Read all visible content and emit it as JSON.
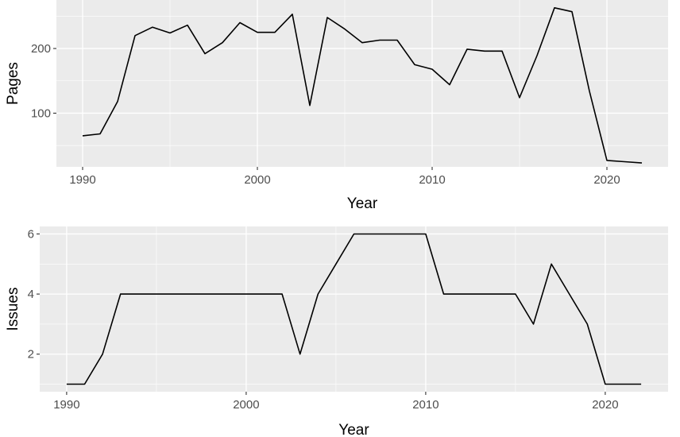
{
  "chart_data": [
    {
      "type": "line",
      "xlabel": "Year",
      "ylabel": "Pages",
      "xlim": [
        1988.5,
        2023.5
      ],
      "ylim": [
        17,
        275
      ],
      "x_ticks": [
        1990,
        2000,
        2010,
        2020
      ],
      "x_minor": [
        1995,
        2005,
        2015
      ],
      "y_ticks": [
        100,
        200
      ],
      "y_minor": [
        50,
        150,
        250
      ],
      "grid": true,
      "line_color": "#000000",
      "panel_color": "#EBEBEB",
      "series": [
        {
          "x": [
            1990,
            1991,
            1992,
            1993,
            1994,
            1995,
            1996,
            1997,
            1998,
            1999,
            2000,
            2001,
            2002,
            2003,
            2004,
            2005,
            2006,
            2007,
            2008,
            2009,
            2010,
            2011,
            2012,
            2013,
            2014,
            2015,
            2016,
            2017,
            2018,
            2019,
            2020,
            2021,
            2022
          ],
          "y": [
            65,
            68,
            118,
            220,
            233,
            224,
            236,
            192,
            209,
            240,
            225,
            225,
            253,
            112,
            248,
            230,
            209,
            213,
            213,
            175,
            168,
            144,
            199,
            196,
            196,
            124,
            189,
            263,
            257,
            134,
            27,
            25,
            23
          ]
        }
      ]
    },
    {
      "type": "line",
      "xlabel": "Year",
      "ylabel": "Issues",
      "xlim": [
        1988.5,
        2023.5
      ],
      "ylim": [
        0.75,
        6.25
      ],
      "x_ticks": [
        1990,
        2000,
        2010,
        2020
      ],
      "x_minor": [
        1995,
        2005,
        2015
      ],
      "y_ticks": [
        2,
        4,
        6
      ],
      "y_minor": [
        1,
        3,
        5
      ],
      "grid": true,
      "line_color": "#000000",
      "panel_color": "#EBEBEB",
      "series": [
        {
          "x": [
            1990,
            1991,
            1992,
            1993,
            1994,
            1995,
            1996,
            1997,
            1998,
            1999,
            2000,
            2001,
            2002,
            2003,
            2004,
            2005,
            2006,
            2007,
            2008,
            2009,
            2010,
            2011,
            2012,
            2013,
            2014,
            2015,
            2016,
            2017,
            2018,
            2019,
            2020,
            2021,
            2022
          ],
          "y": [
            1,
            1,
            2,
            4,
            4,
            4,
            4,
            4,
            4,
            4,
            4,
            4,
            4,
            2,
            4,
            5,
            6,
            6,
            6,
            6,
            6,
            4,
            4,
            4,
            4,
            4,
            3,
            5,
            4,
            3,
            1,
            1,
            1
          ]
        }
      ]
    }
  ]
}
